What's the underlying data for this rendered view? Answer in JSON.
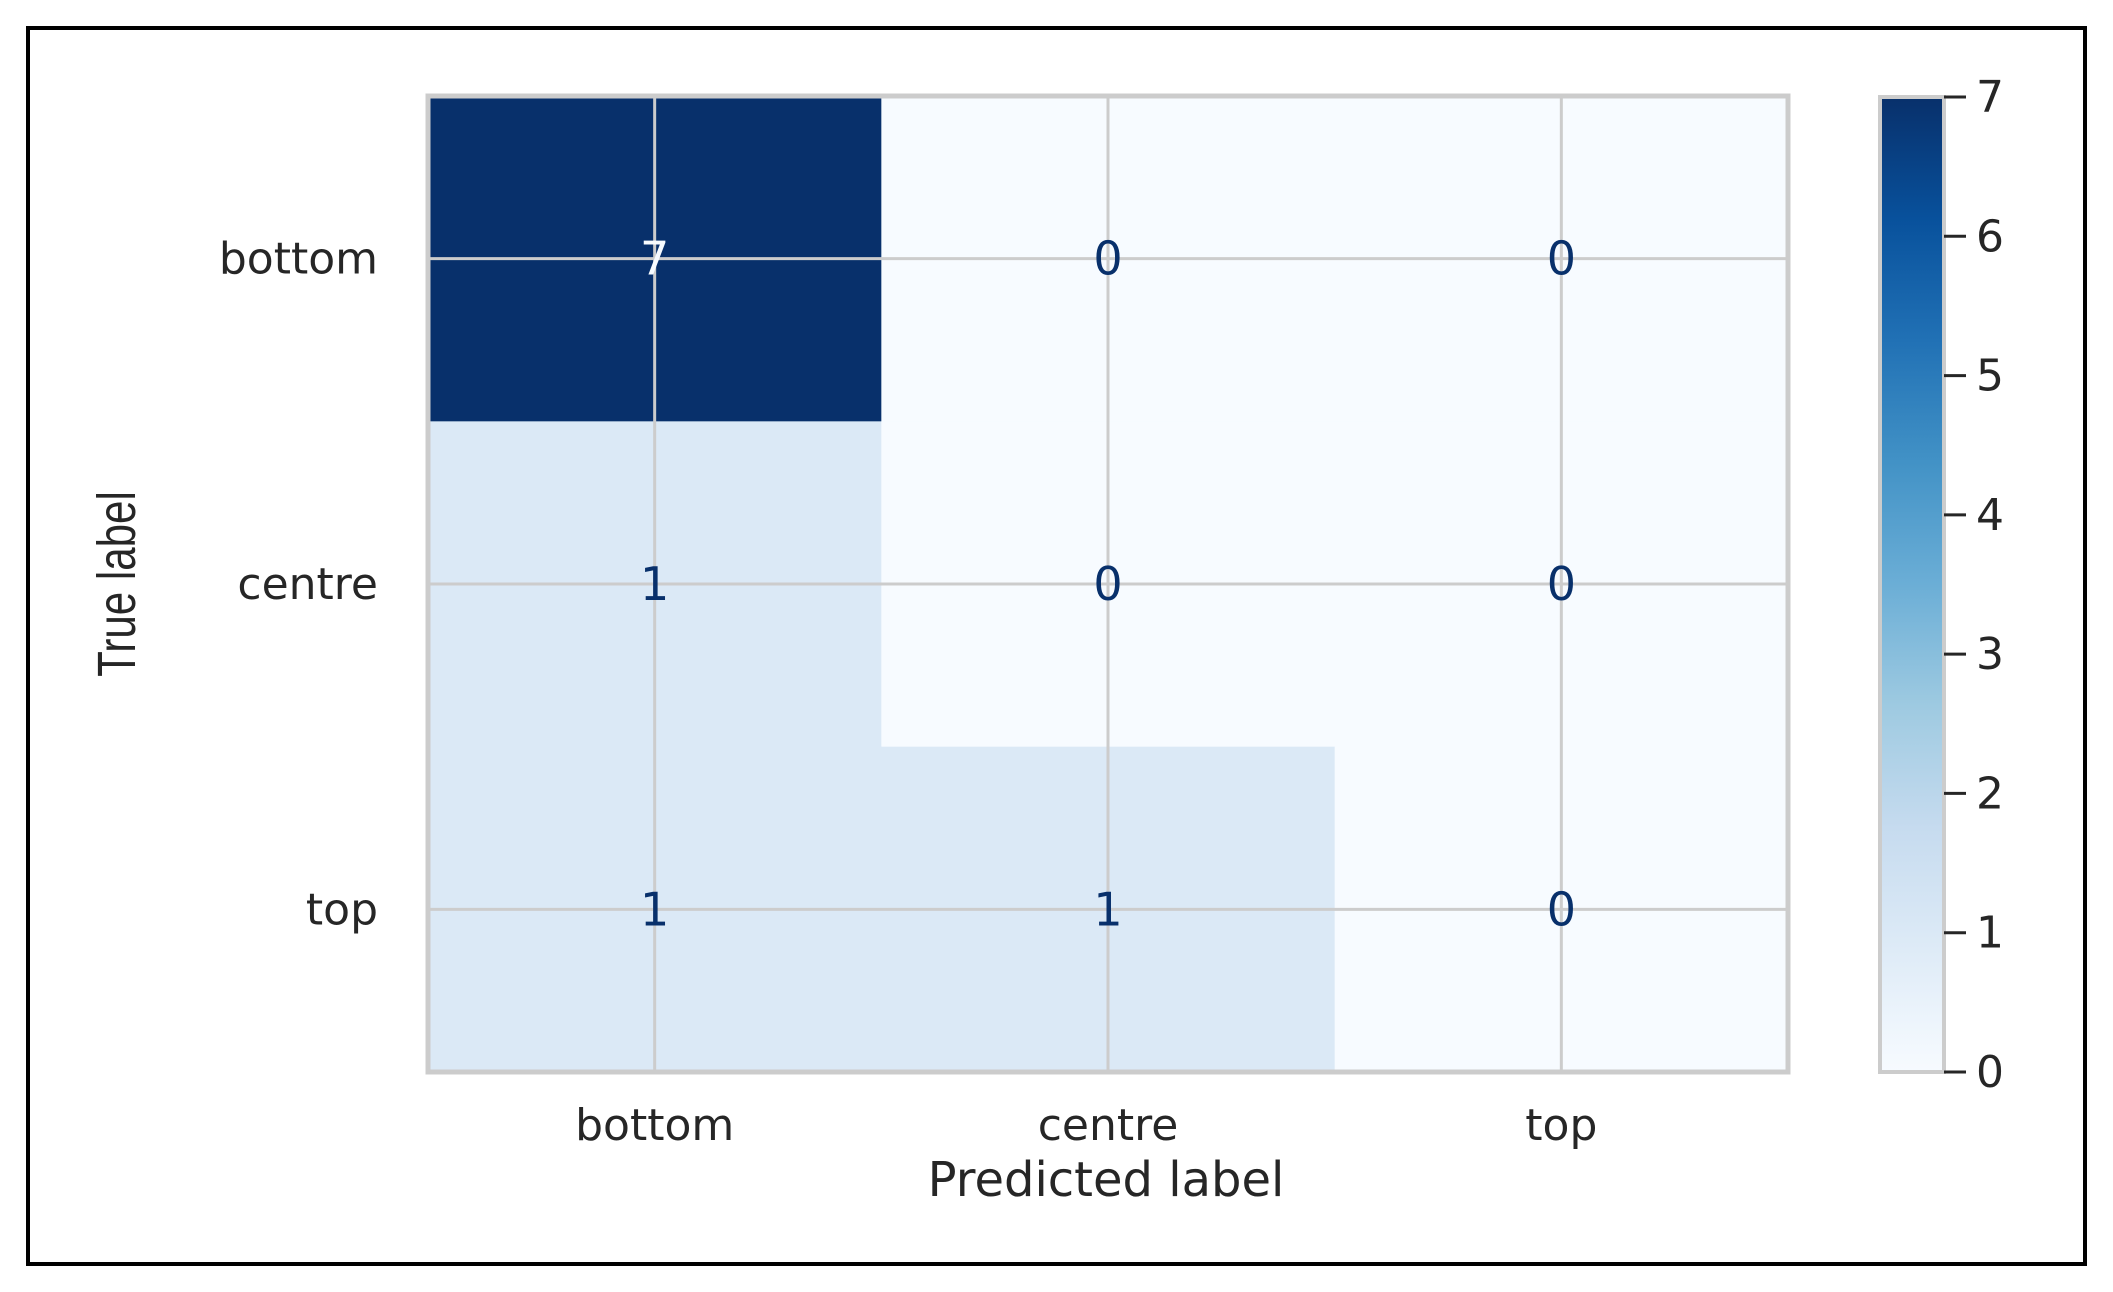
{
  "chart_data": {
    "type": "heatmap",
    "xlabel": "Predicted label",
    "ylabel": "True label",
    "x_categories": [
      "bottom",
      "centre",
      "top"
    ],
    "y_categories": [
      "bottom",
      "centre",
      "top"
    ],
    "matrix": [
      [
        7,
        0,
        0
      ],
      [
        1,
        0,
        0
      ],
      [
        1,
        1,
        0
      ]
    ],
    "colorbar": {
      "min": 0,
      "max": 7,
      "ticks": [
        "0",
        "1",
        "2",
        "3",
        "4",
        "5",
        "6",
        "7"
      ]
    },
    "colormap": "Blues",
    "grid": true
  }
}
